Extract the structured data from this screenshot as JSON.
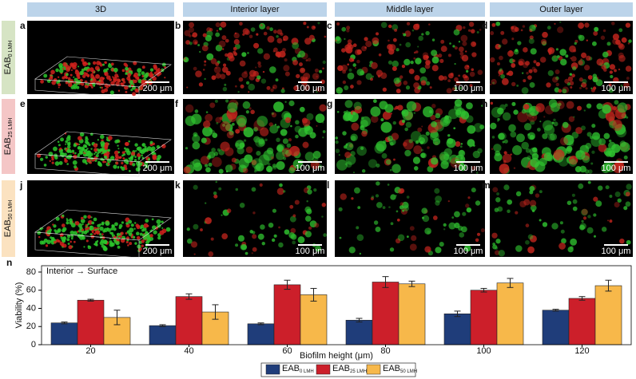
{
  "headers": [
    "3D",
    "Interior layer",
    "Middle layer",
    "Outer layer"
  ],
  "rows": [
    {
      "main": "EAB",
      "sub": "0 LMH",
      "panels": [
        {
          "letter": "a",
          "scale": "200 μm"
        },
        {
          "letter": "b",
          "scale": "100 μm"
        },
        {
          "letter": "c",
          "scale": "100 μm"
        },
        {
          "letter": "d",
          "scale": "100 μm"
        }
      ]
    },
    {
      "main": "EAB",
      "sub": "25 LMH",
      "panels": [
        {
          "letter": "e",
          "scale": "200 μm"
        },
        {
          "letter": "f",
          "scale": "100 μm"
        },
        {
          "letter": "g",
          "scale": "100 μm"
        },
        {
          "letter": "h",
          "scale": "100 μm"
        }
      ]
    },
    {
      "main": "EAB",
      "sub": "50 LMH",
      "panels": [
        {
          "letter": "j",
          "scale": "200 μm"
        },
        {
          "letter": "k",
          "scale": "100 μm"
        },
        {
          "letter": "l",
          "scale": "100 μm"
        },
        {
          "letter": "m",
          "scale": "100 μm"
        }
      ]
    }
  ],
  "chart_data": {
    "type": "bar",
    "letter": "n",
    "annotation": "Interior → Surface",
    "y_label": "Viability (%)",
    "x_label": "Biofilm height (μm)",
    "categories": [
      "20",
      "40",
      "60",
      "80",
      "100",
      "120"
    ],
    "series": [
      {
        "name": "EAB",
        "sub": "0 LMH",
        "color": "#1f3d7a",
        "values": [
          24,
          21,
          23,
          27,
          34,
          38
        ],
        "errors": [
          1,
          1,
          1,
          2,
          3,
          1
        ]
      },
      {
        "name": "EAB",
        "sub": "25 LMH",
        "color": "#cc1f2a",
        "values": [
          49,
          53,
          66,
          69,
          60,
          51
        ],
        "errors": [
          1,
          3,
          5,
          6,
          2,
          2
        ]
      },
      {
        "name": "EAB",
        "sub": "50 LMH",
        "color": "#f7b84a",
        "values": [
          30,
          36,
          55,
          67,
          68,
          65
        ],
        "errors": [
          8,
          8,
          7,
          3,
          5,
          6
        ]
      }
    ],
    "ylim": [
      0,
      87
    ],
    "yticks": [
      0,
      20,
      40,
      60,
      80
    ]
  }
}
